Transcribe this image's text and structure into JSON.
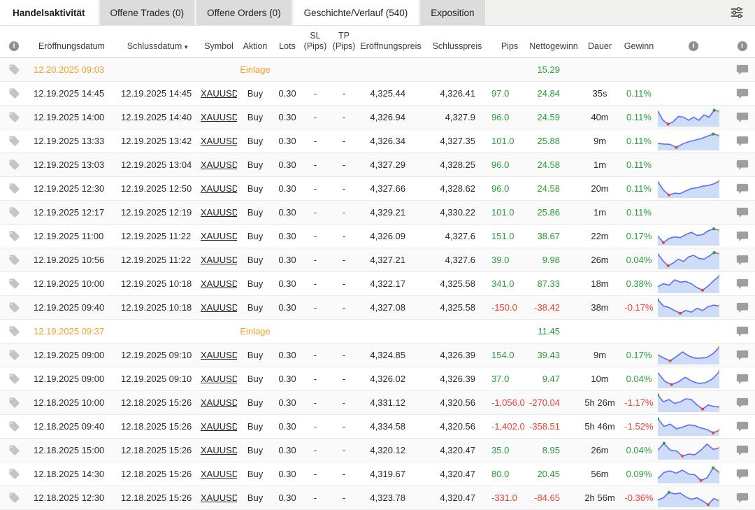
{
  "header_bar": {
    "title": "Handelsaktivität",
    "tabs": [
      {
        "label": "Offene Trades (0)",
        "active": false
      },
      {
        "label": "Offene Orders (0)",
        "active": false
      },
      {
        "label": "Geschichte/Verlauf (540)",
        "active": true
      },
      {
        "label": "Exposition",
        "active": false
      }
    ],
    "filter_icon": "filter-sliders-icon"
  },
  "table": {
    "headers": {
      "open_date": "Eröffnungsdatum",
      "close_date": "Schlussdatum",
      "sort_caret": "▼",
      "symbol": "Symbol",
      "action": "Aktion",
      "lots": "Lots",
      "sl_line1": "SL",
      "sl_line2": "(Pips)",
      "tp_line1": "TP",
      "tp_line2": "(Pips)",
      "open_price": "Eröffnungspreis",
      "close_price": "Schlusspreis",
      "pips": "Pips",
      "net_profit": "Nettogewinn",
      "duration": "Dauer",
      "gain": "Gewinn",
      "info_left": "i",
      "info_chart": "i",
      "info_comment": "i"
    },
    "rows": [
      {
        "type": "deposit",
        "open_date": "12.20.2025 09:03",
        "action": "Einlage",
        "net_profit": "15.29"
      },
      {
        "type": "trade",
        "open_date": "12.19.2025 14:45",
        "close_date": "12.19.2025 14:45",
        "symbol": "XAUUSD",
        "action": "Buy",
        "lots": "0.30",
        "sl": "-",
        "tp": "-",
        "open_price": "4,325.44",
        "close_price": "4,326.41",
        "pips": "97.0",
        "net_profit": "24.84",
        "duration": "35s",
        "gain": "0.11%",
        "spark": null
      },
      {
        "type": "trade",
        "open_date": "12.19.2025 14:00",
        "close_date": "12.19.2025 14:40",
        "symbol": "XAUUSD",
        "action": "Buy",
        "lots": "0.30",
        "sl": "-",
        "tp": "-",
        "open_price": "4,326.94",
        "close_price": "4,327.9",
        "pips": "96.0",
        "net_profit": "24.59",
        "duration": "40m",
        "gain": "0.11%",
        "spark": [
          0.9,
          0.3,
          0.05,
          0.2,
          0.55,
          0.5,
          0.3,
          0.5,
          0.3,
          0.65,
          0.5,
          0.95,
          0.88
        ]
      },
      {
        "type": "trade",
        "open_date": "12.19.2025 13:33",
        "close_date": "12.19.2025 13:42",
        "symbol": "XAUUSD",
        "action": "Buy",
        "lots": "0.30",
        "sl": "-",
        "tp": "-",
        "open_price": "4,326.34",
        "close_price": "4,327.35",
        "pips": "101.0",
        "net_profit": "25.88",
        "duration": "9m",
        "gain": "0.11%",
        "spark": [
          0.35,
          0.3,
          0.28,
          0.08,
          0.3,
          0.45,
          0.55,
          0.65,
          0.8,
          0.95,
          0.85
        ]
      },
      {
        "type": "trade",
        "open_date": "12.19.2025 13:03",
        "close_date": "12.19.2025 13:04",
        "symbol": "XAUUSD",
        "action": "Buy",
        "lots": "0.30",
        "sl": "-",
        "tp": "-",
        "open_price": "4,327.29",
        "close_price": "4,328.25",
        "pips": "96.0",
        "net_profit": "24.58",
        "duration": "1m",
        "gain": "0.11%",
        "spark": null
      },
      {
        "type": "trade",
        "open_date": "12.19.2025 12:30",
        "close_date": "12.19.2025 12:50",
        "symbol": "XAUUSD",
        "action": "Buy",
        "lots": "0.30",
        "sl": "-",
        "tp": "-",
        "open_price": "4,327.66",
        "close_price": "4,328.62",
        "pips": "96.0",
        "net_profit": "24.58",
        "duration": "20m",
        "gain": "0.11%",
        "spark": [
          0.95,
          0.4,
          0.08,
          0.2,
          0.17,
          0.35,
          0.5,
          0.55,
          0.65,
          0.7,
          0.8,
          0.97
        ]
      },
      {
        "type": "trade",
        "open_date": "12.19.2025 12:17",
        "close_date": "12.19.2025 12:19",
        "symbol": "XAUUSD",
        "action": "Buy",
        "lots": "0.30",
        "sl": "-",
        "tp": "-",
        "open_price": "4,329.21",
        "close_price": "4,330.22",
        "pips": "101.0",
        "net_profit": "25.86",
        "duration": "1m",
        "gain": "0.11%",
        "spark": null
      },
      {
        "type": "trade",
        "open_date": "12.19.2025 11:00",
        "close_date": "12.19.2025 11:22",
        "symbol": "XAUUSD",
        "action": "Buy",
        "lots": "0.30",
        "sl": "-",
        "tp": "-",
        "open_price": "4,326.09",
        "close_price": "4,327.6",
        "pips": "151.0",
        "net_profit": "38.67",
        "duration": "22m",
        "gain": "0.17%",
        "spark": [
          0.5,
          0.08,
          0.35,
          0.45,
          0.4,
          0.6,
          0.75,
          0.55,
          0.6,
          0.85,
          0.97,
          0.9
        ]
      },
      {
        "type": "trade",
        "open_date": "12.19.2025 10:56",
        "close_date": "12.19.2025 11:22",
        "symbol": "XAUUSD",
        "action": "Buy",
        "lots": "0.30",
        "sl": "-",
        "tp": "-",
        "open_price": "4,327.21",
        "close_price": "4,327.6",
        "pips": "39.0",
        "net_profit": "9.98",
        "duration": "26m",
        "gain": "0.04%",
        "spark": [
          0.9,
          0.45,
          0.12,
          0.3,
          0.55,
          0.4,
          0.7,
          0.8,
          0.6,
          0.55,
          0.75,
          0.97,
          0.9
        ]
      },
      {
        "type": "trade",
        "open_date": "12.19.2025 10:00",
        "close_date": "12.19.2025 10:18",
        "symbol": "XAUUSD",
        "action": "Buy",
        "lots": "0.30",
        "sl": "-",
        "tp": "-",
        "open_price": "4,322.17",
        "close_price": "4,325.58",
        "pips": "341.0",
        "net_profit": "87.33",
        "duration": "18m",
        "gain": "0.38%",
        "spark": [
          0.3,
          0.5,
          0.4,
          0.75,
          0.6,
          0.65,
          0.5,
          0.25,
          0.08,
          0.35,
          0.7,
          1.0
        ]
      },
      {
        "type": "trade",
        "open_date": "12.19.2025 09:40",
        "close_date": "12.19.2025 10:18",
        "symbol": "XAUUSD",
        "action": "Buy",
        "lots": "0.30",
        "sl": "-",
        "tp": "-",
        "open_price": "4,327.08",
        "close_price": "4,325.58",
        "pips": "-150.0",
        "net_profit": "-38.42",
        "duration": "38m",
        "gain": "-0.17%",
        "spark": [
          1.0,
          0.6,
          0.5,
          0.3,
          0.12,
          0.3,
          0.2,
          0.45,
          0.3,
          0.55,
          0.65,
          0.6
        ]
      },
      {
        "type": "deposit",
        "open_date": "12.19.2025 09:37",
        "action": "Einlage",
        "net_profit": "11.45"
      },
      {
        "type": "trade",
        "open_date": "12.19.2025 09:00",
        "close_date": "12.19.2025 09:10",
        "symbol": "XAUUSD",
        "action": "Buy",
        "lots": "0.30",
        "sl": "-",
        "tp": "-",
        "open_price": "4,324.85",
        "close_price": "4,326.39",
        "pips": "154.0",
        "net_profit": "39.43",
        "duration": "9m",
        "gain": "0.17%",
        "spark": [
          0.5,
          0.3,
          0.12,
          0.4,
          0.7,
          0.45,
          0.3,
          0.3,
          0.35,
          0.6,
          1.0
        ]
      },
      {
        "type": "trade",
        "open_date": "12.19.2025 09:00",
        "close_date": "12.19.2025 09:10",
        "symbol": "XAUUSD",
        "action": "Buy",
        "lots": "0.30",
        "sl": "-",
        "tp": "-",
        "open_price": "4,326.02",
        "close_price": "4,326.39",
        "pips": "37.0",
        "net_profit": "9.47",
        "duration": "10m",
        "gain": "0.04%",
        "spark": [
          0.9,
          0.35,
          0.12,
          0.3,
          0.6,
          0.35,
          0.2,
          0.25,
          0.5,
          0.97
        ]
      },
      {
        "type": "trade",
        "open_date": "12.18.2025 10:00",
        "close_date": "12.18.2025 15:26",
        "symbol": "XAUUSD",
        "action": "Buy",
        "lots": "0.30",
        "sl": "-",
        "tp": "-",
        "open_price": "4,331.12",
        "close_price": "4,320.56",
        "pips": "-1,056.0",
        "net_profit": "-270.04",
        "duration": "5h 26m",
        "gain": "-1.17%",
        "spark": [
          1.0,
          0.55,
          0.7,
          0.45,
          0.55,
          0.75,
          0.7,
          0.35,
          0.08,
          0.35,
          0.25,
          0.22
        ]
      },
      {
        "type": "trade",
        "open_date": "12.18.2025 09:40",
        "close_date": "12.18.2025 15:26",
        "symbol": "XAUUSD",
        "action": "Buy",
        "lots": "0.30",
        "sl": "-",
        "tp": "-",
        "open_price": "4,334.58",
        "close_price": "4,320.56",
        "pips": "-1,402.0",
        "net_profit": "-358.51",
        "duration": "5h 46m",
        "gain": "-1.52%",
        "spark": [
          1.0,
          0.5,
          0.65,
          0.35,
          0.45,
          0.6,
          0.55,
          0.4,
          0.3,
          0.08,
          0.25
        ]
      },
      {
        "type": "trade",
        "open_date": "12.18.2025 15:00",
        "close_date": "12.18.2025 15:26",
        "symbol": "XAUUSD",
        "action": "Buy",
        "lots": "0.30",
        "sl": "-",
        "tp": "-",
        "open_price": "4,320.12",
        "close_price": "4,320.47",
        "pips": "35.0",
        "net_profit": "8.95",
        "duration": "26m",
        "gain": "0.04%",
        "spark": [
          0.5,
          0.95,
          0.5,
          0.45,
          0.12,
          0.25,
          0.2,
          0.5,
          0.9,
          0.55,
          0.65
        ]
      },
      {
        "type": "trade",
        "open_date": "12.18.2025 14:30",
        "close_date": "12.18.2025 15:26",
        "symbol": "XAUUSD",
        "action": "Buy",
        "lots": "0.30",
        "sl": "-",
        "tp": "-",
        "open_price": "4,319.67",
        "close_price": "4,320.47",
        "pips": "80.0",
        "net_profit": "20.45",
        "duration": "56m",
        "gain": "0.09%",
        "spark": [
          0.2,
          0.6,
          0.7,
          0.55,
          0.75,
          0.5,
          0.45,
          0.08,
          0.25,
          0.9,
          0.6
        ]
      },
      {
        "type": "trade",
        "open_date": "12.18.2025 12:30",
        "close_date": "12.18.2025 15:26",
        "symbol": "XAUUSD",
        "action": "Buy",
        "lots": "0.30",
        "sl": "-",
        "tp": "-",
        "open_price": "4,323.78",
        "close_price": "4,320.47",
        "pips": "-331.0",
        "net_profit": "-84.65",
        "duration": "2h 56m",
        "gain": "-0.36%",
        "spark": [
          0.35,
          0.5,
          0.85,
          0.75,
          0.8,
          0.55,
          0.4,
          0.5,
          0.3,
          0.05,
          0.45,
          0.3
        ]
      }
    ]
  },
  "colors": {
    "positive": "#27a035",
    "negative": "#ee4130",
    "deposit_orange": "#f5a02a",
    "spark_line": "#5b6ef5",
    "spark_fill": "#cddcf7",
    "spark_min_dot": "#f0452c",
    "spark_max_dot": "#27a22d",
    "spark_last_dot": "#ff9d2e"
  }
}
